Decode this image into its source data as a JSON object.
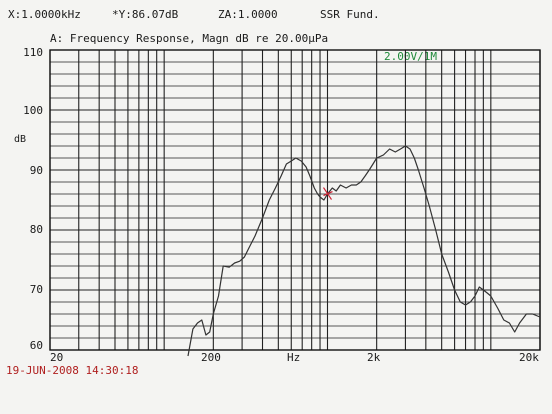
{
  "header": {
    "x_readout": "X:1.0000kHz",
    "y_readout": "*Y:86.07dB",
    "z_readout": "ZA:1.0000",
    "mode": "SSR Fund."
  },
  "subtitle": "A: Frequency Response, Magn dB re 20.00μPa",
  "scale_label": "2.00V/1M",
  "timestamp": "19-JUN-2008 14:30:18",
  "chart_data": {
    "type": "line",
    "title": "A: Frequency Response, Magn dB re 20.00μPa",
    "ylabel": "dB",
    "xlabel": "Hz",
    "x_scale": "log",
    "xlim": [
      20,
      20000
    ],
    "ylim": [
      60,
      110
    ],
    "grid": true,
    "y_ticks": [
      {
        "value": 110,
        "label": "110"
      },
      {
        "value": 100,
        "label": "100"
      },
      {
        "value": 90,
        "label": "90"
      },
      {
        "value": 80,
        "label": "80"
      },
      {
        "value": 70,
        "label": "70"
      },
      {
        "value": 60,
        "label": "60"
      }
    ],
    "x_ticks": [
      {
        "value": 20,
        "label": "20"
      },
      {
        "value": 200,
        "label": "200"
      },
      {
        "value": 632,
        "label": "Hz"
      },
      {
        "value": 2000,
        "label": "2k"
      },
      {
        "value": 20000,
        "label": "20k"
      }
    ],
    "series": [
      {
        "color": "#333333",
        "points": [
          [
            140,
            59
          ],
          [
            150,
            63.5
          ],
          [
            160,
            64.5
          ],
          [
            170,
            65
          ],
          [
            180,
            62.5
          ],
          [
            190,
            63
          ],
          [
            200,
            66
          ],
          [
            215,
            69
          ],
          [
            230,
            74
          ],
          [
            250,
            73.8
          ],
          [
            270,
            74.5
          ],
          [
            290,
            74.8
          ],
          [
            310,
            75.5
          ],
          [
            330,
            77
          ],
          [
            360,
            79
          ],
          [
            400,
            82
          ],
          [
            440,
            85
          ],
          [
            480,
            87
          ],
          [
            520,
            89
          ],
          [
            560,
            91
          ],
          [
            600,
            91.5
          ],
          [
            640,
            92
          ],
          [
            690,
            91.5
          ],
          [
            740,
            90.5
          ],
          [
            780,
            89
          ],
          [
            830,
            87
          ],
          [
            870,
            86
          ],
          [
            900,
            85.5
          ],
          [
            950,
            85
          ],
          [
            1000,
            86
          ],
          [
            1070,
            87
          ],
          [
            1130,
            86.5
          ],
          [
            1200,
            87.5
          ],
          [
            1300,
            87
          ],
          [
            1400,
            87.5
          ],
          [
            1500,
            87.5
          ],
          [
            1600,
            88
          ],
          [
            1700,
            89
          ],
          [
            1800,
            90
          ],
          [
            1900,
            91
          ],
          [
            2000,
            92
          ],
          [
            2200,
            92.5
          ],
          [
            2400,
            93.5
          ],
          [
            2600,
            93
          ],
          [
            2800,
            93.5
          ],
          [
            3000,
            94
          ],
          [
            3200,
            93.5
          ],
          [
            3400,
            92
          ],
          [
            3600,
            90
          ],
          [
            3900,
            87
          ],
          [
            4200,
            84
          ],
          [
            4600,
            80
          ],
          [
            5000,
            76
          ],
          [
            5500,
            73
          ],
          [
            6000,
            70
          ],
          [
            6500,
            68
          ],
          [
            7000,
            67.5
          ],
          [
            7500,
            68
          ],
          [
            8000,
            69
          ],
          [
            8500,
            70.5
          ],
          [
            9000,
            70
          ],
          [
            9500,
            69.5
          ],
          [
            10000,
            69
          ],
          [
            11000,
            67
          ],
          [
            12000,
            65
          ],
          [
            13000,
            64.5
          ],
          [
            14000,
            63
          ],
          [
            15000,
            64.5
          ],
          [
            16500,
            66
          ],
          [
            18000,
            66
          ],
          [
            20000,
            65.5
          ]
        ]
      }
    ],
    "marker": {
      "x": 1000,
      "y": 86.07,
      "color": "#cc2233"
    }
  }
}
